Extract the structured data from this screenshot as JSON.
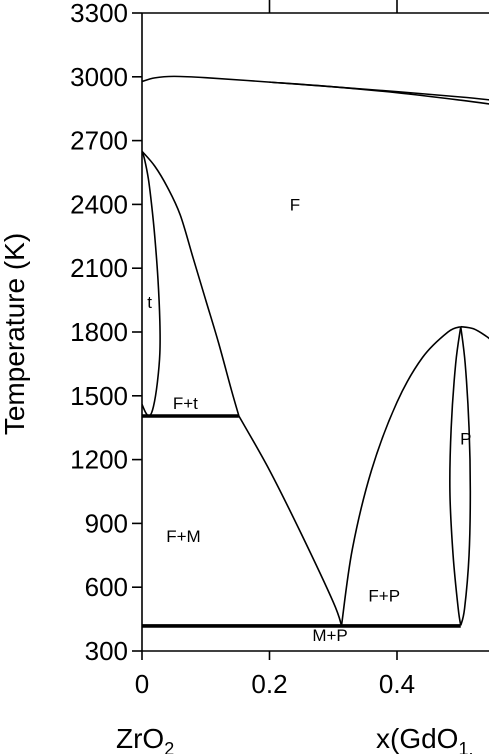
{
  "chart_data": {
    "type": "line",
    "subtype": "phase-diagram",
    "title": "",
    "ylabel": "Temperature (K)",
    "xlabel_left": "ZrO",
    "xlabel_left_sub": "2",
    "xlabel_right": "x(GdO",
    "xlabel_right_sub": "1.",
    "xlim": [
      0,
      0.55
    ],
    "ylim": [
      300,
      3300
    ],
    "yticks": [
      300,
      600,
      900,
      1200,
      1500,
      1800,
      2100,
      2400,
      2700,
      3000,
      3300
    ],
    "ytick_labels": [
      "300",
      "600",
      "900",
      "1200",
      "1500",
      "1800",
      "2100",
      "2400",
      "2700",
      "3000",
      "3300"
    ],
    "xticks": [
      0,
      0.2,
      0.4
    ],
    "xtick_labels": [
      "0",
      "0.2",
      "0.4"
    ],
    "top_ticks": [
      0.2,
      0.4
    ],
    "regions": [
      {
        "label": "F",
        "x": 0.24,
        "y": 2400
      },
      {
        "label": "t",
        "x": 0.012,
        "y": 1940
      },
      {
        "label": "F+t",
        "x": 0.068,
        "y": 1465
      },
      {
        "label": "F+M",
        "x": 0.065,
        "y": 840
      },
      {
        "label": "F+P",
        "x": 0.38,
        "y": 560
      },
      {
        "label": "P",
        "x": 0.508,
        "y": 1300
      },
      {
        "label": "M+P",
        "x": 0.295,
        "y": 375
      }
    ],
    "tielines": [
      {
        "name": "eutectoid",
        "x": [
          0,
          0.152
        ],
        "y": [
          1405,
          1405
        ]
      },
      {
        "name": "low-temp",
        "x": [
          0,
          0.5
        ],
        "y": [
          418,
          418
        ]
      }
    ],
    "boundaries": [
      {
        "name": "liquidus",
        "x": [
          0,
          0.02,
          0.05,
          0.1,
          0.2,
          0.3,
          0.4,
          0.5,
          0.55
        ],
        "y": [
          2978,
          2995,
          3002,
          2996,
          2975,
          2953,
          2930,
          2905,
          2890
        ]
      },
      {
        "name": "solidus",
        "x": [
          0.2,
          0.3,
          0.4,
          0.5,
          0.55
        ],
        "y": [
          2975,
          2953,
          2925,
          2890,
          2870
        ]
      },
      {
        "name": "t-boundary-outer",
        "x": [
          0,
          0.004,
          0.01,
          0.015,
          0.02,
          0.025,
          0.028,
          0.028,
          0.024,
          0.018,
          0.012,
          0.006,
          0
        ],
        "y": [
          2650,
          2612,
          2520,
          2400,
          2250,
          2050,
          1850,
          1700,
          1560,
          1450,
          1405,
          1420,
          1460
        ]
      },
      {
        "name": "F-boundary",
        "x": [
          0,
          0.02,
          0.04,
          0.06,
          0.08,
          0.1,
          0.12,
          0.14,
          0.152
        ],
        "y": [
          2650,
          2580,
          2480,
          2350,
          2150,
          1950,
          1750,
          1530,
          1405
        ]
      },
      {
        "name": "F+M-boundary",
        "x": [
          0.152,
          0.2,
          0.25,
          0.3,
          0.313
        ],
        "y": [
          1405,
          1150,
          850,
          530,
          420
        ]
      },
      {
        "name": "F+P-left",
        "x": [
          0.313,
          0.33,
          0.36,
          0.4,
          0.44,
          0.48,
          0.5
        ],
        "y": [
          420,
          780,
          1150,
          1470,
          1680,
          1800,
          1825
        ]
      },
      {
        "name": "F+P-right-upper",
        "x": [
          0.5,
          0.52,
          0.54,
          0.55
        ],
        "y": [
          1825,
          1815,
          1780,
          1755
        ]
      },
      {
        "name": "P-left",
        "x": [
          0.5,
          0.492,
          0.485,
          0.483,
          0.488,
          0.496,
          0.5
        ],
        "y": [
          1825,
          1650,
          1350,
          1050,
          750,
          500,
          420
        ]
      },
      {
        "name": "P-right",
        "x": [
          0.5,
          0.507,
          0.513,
          0.515,
          0.513,
          0.506,
          0.5
        ],
        "y": [
          1825,
          1650,
          1350,
          1050,
          750,
          500,
          420
        ]
      }
    ]
  }
}
